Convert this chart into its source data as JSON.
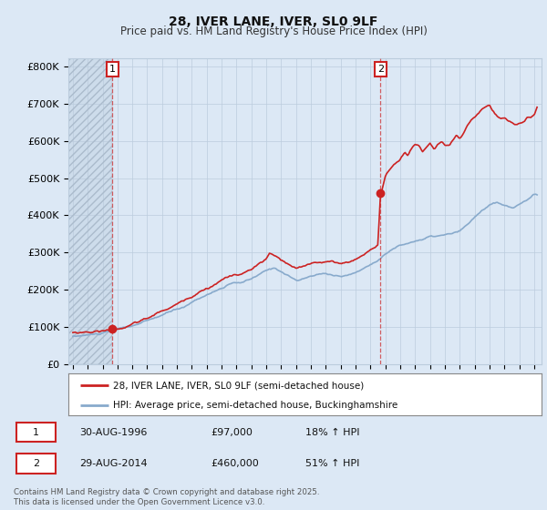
{
  "title": "28, IVER LANE, IVER, SL0 9LF",
  "subtitle": "Price paid vs. HM Land Registry's House Price Index (HPI)",
  "title_fontsize": 10,
  "subtitle_fontsize": 8.5,
  "ylabel_fontsize": 8,
  "xlabel_fontsize": 7,
  "fig_width": 6.0,
  "fig_height": 5.6,
  "dpi": 100,
  "background_color": "#dce8f5",
  "plot_bg_color": "#dce8f5",
  "hatch_color": "#c0d0e0",
  "red_color": "#cc2222",
  "blue_color": "#88aacc",
  "grid_color": "#bbccdd",
  "annotation_box_color": "#cc2222",
  "ylim": [
    0,
    820000
  ],
  "xlim_start": 1993.7,
  "xlim_end": 2025.5,
  "yticks": [
    0,
    100000,
    200000,
    300000,
    400000,
    500000,
    600000,
    700000,
    800000
  ],
  "ytick_labels": [
    "£0",
    "£100K",
    "£200K",
    "£300K",
    "£400K",
    "£500K",
    "£600K",
    "£700K",
    "£800K"
  ],
  "xticks": [
    1994,
    1995,
    1996,
    1997,
    1998,
    1999,
    2000,
    2001,
    2002,
    2003,
    2004,
    2005,
    2006,
    2007,
    2008,
    2009,
    2010,
    2011,
    2012,
    2013,
    2014,
    2015,
    2016,
    2017,
    2018,
    2019,
    2020,
    2021,
    2022,
    2023,
    2024,
    2025
  ],
  "sale1_year": 1996.67,
  "sale1_price": 97000,
  "sale1_label": "1",
  "sale1_date": "30-AUG-1996",
  "sale1_amount": "£97,000",
  "sale1_hpi": "18% ↑ HPI",
  "sale2_year": 2014.67,
  "sale2_price": 460000,
  "sale2_label": "2",
  "sale2_date": "29-AUG-2014",
  "sale2_amount": "£460,000",
  "sale2_hpi": "51% ↑ HPI",
  "legend_line1": "28, IVER LANE, IVER, SL0 9LF (semi-detached house)",
  "legend_line2": "HPI: Average price, semi-detached house, Buckinghamshire",
  "footer": "Contains HM Land Registry data © Crown copyright and database right 2025.\nThis data is licensed under the Open Government Licence v3.0.",
  "white_bg": "#ffffff"
}
